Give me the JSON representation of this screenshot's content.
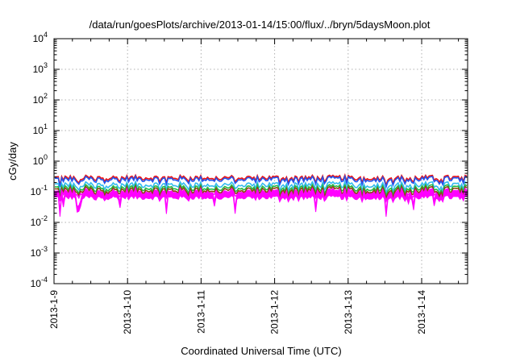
{
  "chart_data": {
    "type": "line",
    "title": "/data/run/goesPlots/archive/2013-01-14/15:00/flux/../bryn/5daysMoon.plot",
    "xlabel": "Coordinated Universal Time (UTC)",
    "ylabel": "cGy/day",
    "yscale": "log",
    "ylim": [
      0.0001,
      10000
    ],
    "xlim": [
      "2013-01-09T00:00",
      "2013-01-14T15:00"
    ],
    "grid": true,
    "y_ticks": [
      {
        "value": 0.0001,
        "base": "10",
        "exp": "-4"
      },
      {
        "value": 0.001,
        "base": "10",
        "exp": "-3"
      },
      {
        "value": 0.01,
        "base": "10",
        "exp": "-2"
      },
      {
        "value": 0.1,
        "base": "10",
        "exp": "-1"
      },
      {
        "value": 1,
        "base": "10",
        "exp": "0"
      },
      {
        "value": 10,
        "base": "10",
        "exp": "1"
      },
      {
        "value": 100,
        "base": "10",
        "exp": "2"
      },
      {
        "value": 1000,
        "base": "10",
        "exp": "3"
      },
      {
        "value": 10000,
        "base": "10",
        "exp": "4"
      }
    ],
    "x_ticks": [
      "2013-1-9",
      "2013-1-10",
      "2013-1-11",
      "2013-1-12",
      "2013-1-13",
      "2013-1-14"
    ],
    "series": [
      {
        "color": "#ff00ff",
        "kind": "band",
        "low": 0.065,
        "high": 0.1
      },
      {
        "color": "#ee1111",
        "level": 0.29
      },
      {
        "color": "#2255ee",
        "level": 0.26
      },
      {
        "color": "#33bbee",
        "level": 0.17
      },
      {
        "color": "#22bb44",
        "level": 0.135
      },
      {
        "color": "#8b4513",
        "level": 0.115
      },
      {
        "color": "#ff00ff",
        "level": 0.095
      }
    ]
  }
}
